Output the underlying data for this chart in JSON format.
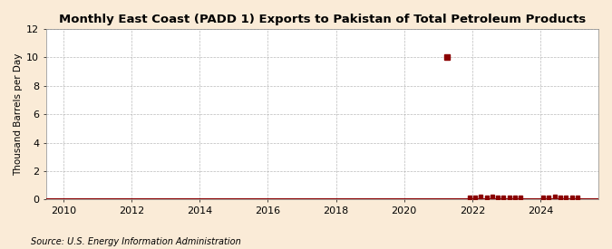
{
  "title": "Monthly East Coast (PADD 1) Exports to Pakistan of Total Petroleum Products",
  "ylabel": "Thousand Barrels per Day",
  "source": "Source: U.S. Energy Information Administration",
  "background_color": "#faebd7",
  "plot_background_color": "#ffffff",
  "line_color": "#8b0000",
  "marker_color": "#8b0000",
  "grid_color": "#aaaaaa",
  "xlim": [
    2009.5,
    2025.7
  ],
  "ylim": [
    0,
    12
  ],
  "yticks": [
    0,
    2,
    4,
    6,
    8,
    10,
    12
  ],
  "xticks": [
    2010,
    2012,
    2014,
    2016,
    2018,
    2020,
    2022,
    2024
  ],
  "special_point_x": 2021.25,
  "special_point_y": 10.0,
  "zero_line_start": 2009.5,
  "zero_line_end": 2025.7,
  "nonzero_scatter": [
    [
      2021.25,
      10.0
    ],
    [
      2021.917,
      0.15
    ],
    [
      2022.083,
      0.15
    ],
    [
      2022.25,
      0.2
    ],
    [
      2022.417,
      0.15
    ],
    [
      2022.583,
      0.2
    ],
    [
      2022.75,
      0.15
    ],
    [
      2022.917,
      0.15
    ],
    [
      2023.083,
      0.15
    ],
    [
      2023.25,
      0.15
    ],
    [
      2023.417,
      0.15
    ],
    [
      2024.083,
      0.15
    ],
    [
      2024.25,
      0.15
    ],
    [
      2024.417,
      0.2
    ],
    [
      2024.583,
      0.15
    ],
    [
      2024.75,
      0.15
    ],
    [
      2024.917,
      0.15
    ],
    [
      2025.083,
      0.15
    ]
  ]
}
